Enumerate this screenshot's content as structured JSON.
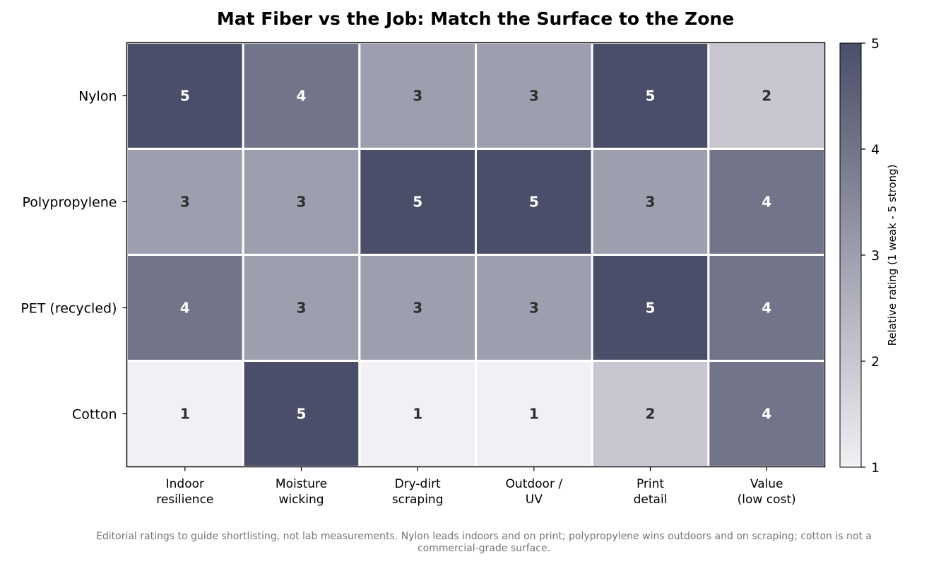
{
  "chart_data": {
    "type": "heatmap",
    "title": "Mat Fiber vs the Job: Match the Surface to the Zone",
    "rows": [
      "Nylon",
      "Polypropylene",
      "PET (recycled)",
      "Cotton"
    ],
    "columns": [
      [
        "Indoor",
        "resilience"
      ],
      [
        "Moisture",
        "wicking"
      ],
      [
        "Dry-dirt",
        "scraping"
      ],
      [
        "Outdoor /",
        "UV"
      ],
      [
        "Print",
        "detail"
      ],
      [
        "Value",
        "(low cost)"
      ]
    ],
    "values": [
      [
        5,
        4,
        3,
        3,
        5,
        2
      ],
      [
        3,
        3,
        5,
        5,
        3,
        4
      ],
      [
        4,
        3,
        3,
        3,
        5,
        4
      ],
      [
        1,
        5,
        1,
        1,
        2,
        4
      ]
    ],
    "colorbar": {
      "label": "Relative rating (1 weak - 5 strong)",
      "range": [
        1,
        5
      ],
      "ticks": [
        "1",
        "2",
        "3",
        "4",
        "5"
      ]
    },
    "colors": {
      "1": "#f2f0f4",
      "2": "#c8c7d1",
      "3": "#9e9fae",
      "4": "#727589",
      "5": "#4a4e68",
      "dark_text": "#2f2f2f",
      "light_text": "#ffffff"
    },
    "caption": [
      "Editorial ratings to guide shortlisting, not lab measurements. Nylon leads indoors and on print; polypropylene wins outdoors and on scraping; cotton is not a",
      "commercial-grade surface."
    ]
  }
}
